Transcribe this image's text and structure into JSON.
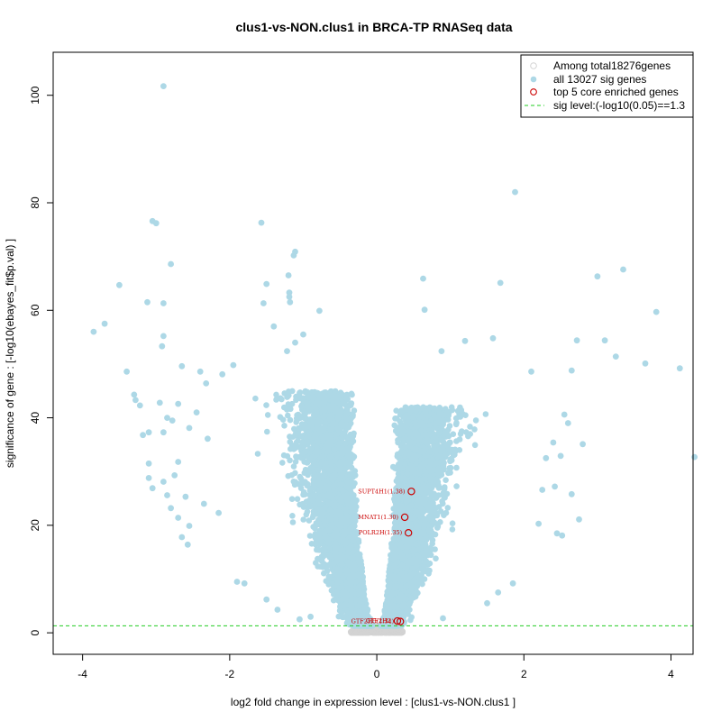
{
  "chart_data": {
    "type": "scatter",
    "title": "clus1-vs-NON.clus1 in BRCA-TP RNASeq data",
    "xlabel": "log2 fold change in expression level : [clus1-vs-NON.clus1 ]",
    "ylabel": "significance of gene : [-log10(ebayes_fit$p.val) ]",
    "xlim": [
      -4.4,
      4.3
    ],
    "ylim": [
      -4,
      108
    ],
    "xticks": [
      -4,
      -2,
      0,
      2,
      4
    ],
    "yticks": [
      0,
      20,
      40,
      60,
      80,
      100
    ],
    "legend": {
      "position": "top-right",
      "entries": [
        {
          "label": "Among total18276genes",
          "marker": "open-circle",
          "color": "#d3d3d3"
        },
        {
          "label": "all 13027 sig genes",
          "marker": "filled-circle",
          "color": "#add8e6"
        },
        {
          "label": "top 5 core enriched genes",
          "marker": "open-circle",
          "color": "#cc0000"
        },
        {
          "label": "sig level:(-log10(0.05)==1.3",
          "marker": "dashed-line",
          "color": "#22cc22"
        }
      ]
    },
    "sig_level": 1.3,
    "colors": {
      "all": "#d3d3d3",
      "sig": "#add8e6",
      "top": "#cc0000",
      "sig_line": "#22cc22"
    },
    "top_genes": [
      {
        "label": "SUPT4H1(1.38)",
        "x": 0.47,
        "y": 26.3
      },
      {
        "label": "MNAT1(1.30)",
        "x": 0.38,
        "y": 21.5
      },
      {
        "label": "POLR2H(1.35)",
        "x": 0.43,
        "y": 18.6
      },
      {
        "label": "GTF2H2",
        "x": 0.28,
        "y": 2.2
      },
      {
        "label": "GTF2H5(1.34)",
        "x": 0.32,
        "y": 2.1
      }
    ],
    "highlight_points": [
      [
        -2.9,
        101.7
      ],
      [
        1.88,
        82.0
      ],
      [
        -3.05,
        76.6
      ],
      [
        -3.0,
        76.2
      ],
      [
        -1.57,
        76.3
      ],
      [
        -1.11,
        70.9
      ],
      [
        -1.13,
        70.2
      ],
      [
        -2.8,
        68.6
      ],
      [
        3.35,
        67.6
      ],
      [
        3.0,
        66.3
      ],
      [
        -1.2,
        66.5
      ],
      [
        0.63,
        65.9
      ],
      [
        -1.5,
        64.9
      ],
      [
        1.68,
        65.1
      ],
      [
        -3.5,
        64.7
      ],
      [
        -1.19,
        63.3
      ],
      [
        -1.19,
        62.5
      ],
      [
        -1.18,
        61.5
      ],
      [
        -3.12,
        61.5
      ],
      [
        -2.9,
        61.3
      ],
      [
        -1.54,
        61.3
      ],
      [
        0.65,
        60.1
      ],
      [
        -0.78,
        59.9
      ],
      [
        3.8,
        59.7
      ],
      [
        -3.7,
        57.5
      ],
      [
        -3.85,
        56.0
      ],
      [
        -1.4,
        57.0
      ],
      [
        -2.9,
        55.2
      ],
      [
        -2.92,
        53.3
      ],
      [
        1.58,
        54.8
      ],
      [
        2.72,
        54.4
      ],
      [
        3.1,
        54.4
      ],
      [
        -1.11,
        54.0
      ],
      [
        -1.0,
        55.5
      ],
      [
        1.2,
        54.3
      ],
      [
        -1.22,
        52.4
      ],
      [
        0.88,
        52.4
      ],
      [
        3.25,
        51.4
      ],
      [
        3.65,
        50.1
      ],
      [
        4.12,
        49.2
      ],
      [
        2.65,
        48.8
      ],
      [
        -3.4,
        48.6
      ],
      [
        -2.65,
        49.6
      ],
      [
        -2.4,
        48.6
      ],
      [
        -1.95,
        49.8
      ],
      [
        2.1,
        48.6
      ],
      [
        -2.1,
        48.1
      ],
      [
        -2.32,
        46.4
      ],
      [
        -3.3,
        44.3
      ],
      [
        -3.28,
        43.3
      ],
      [
        -3.22,
        42.3
      ],
      [
        -2.95,
        42.8
      ],
      [
        -2.7,
        42.6
      ],
      [
        -2.45,
        41.0
      ],
      [
        2.55,
        40.6
      ],
      [
        -2.85,
        40.0
      ],
      [
        -2.78,
        39.5
      ],
      [
        2.6,
        39.0
      ],
      [
        -2.55,
        38.1
      ],
      [
        -3.1,
        37.3
      ],
      [
        -2.9,
        37.3
      ],
      [
        -3.18,
        36.8
      ],
      [
        2.8,
        35.1
      ],
      [
        2.4,
        35.4
      ],
      [
        -2.3,
        36.1
      ],
      [
        4.32,
        32.7
      ],
      [
        2.5,
        32.9
      ],
      [
        2.3,
        32.5
      ],
      [
        -3.1,
        31.5
      ],
      [
        -2.7,
        31.8
      ],
      [
        -2.75,
        29.3
      ],
      [
        -3.1,
        28.8
      ],
      [
        -2.9,
        28.1
      ],
      [
        -3.05,
        26.9
      ],
      [
        -2.85,
        25.6
      ],
      [
        -2.6,
        25.3
      ],
      [
        2.65,
        25.8
      ],
      [
        2.42,
        27.2
      ],
      [
        2.25,
        26.6
      ],
      [
        -2.8,
        23.2
      ],
      [
        -2.7,
        21.4
      ],
      [
        2.75,
        21.1
      ],
      [
        -2.55,
        19.9
      ],
      [
        2.45,
        18.5
      ],
      [
        2.52,
        18.1
      ],
      [
        -2.65,
        17.8
      ],
      [
        -2.57,
        16.4
      ],
      [
        -2.35,
        24.0
      ],
      [
        -2.15,
        22.3
      ],
      [
        2.2,
        20.3
      ],
      [
        -1.9,
        9.5
      ],
      [
        -1.8,
        9.2
      ],
      [
        -1.5,
        6.2
      ],
      [
        -1.35,
        4.3
      ],
      [
        1.5,
        5.5
      ],
      [
        1.65,
        7.5
      ],
      [
        1.85,
        9.2
      ],
      [
        -1.05,
        2.5
      ],
      [
        -0.9,
        3.0
      ],
      [
        0.9,
        2.7
      ]
    ],
    "sig_cloud": {
      "left": {
        "x_at_zero": -0.03,
        "x_at_top": -0.62,
        "y_top": 45,
        "spread": 0.55,
        "n": 4200
      },
      "right": {
        "x_at_zero": 0.03,
        "x_at_top": 0.55,
        "y_top": 42,
        "spread": 0.5,
        "n": 3800
      }
    },
    "nonsig_region": {
      "x_range": [
        -0.35,
        0.35
      ],
      "y_range": [
        0,
        1.3
      ]
    }
  }
}
